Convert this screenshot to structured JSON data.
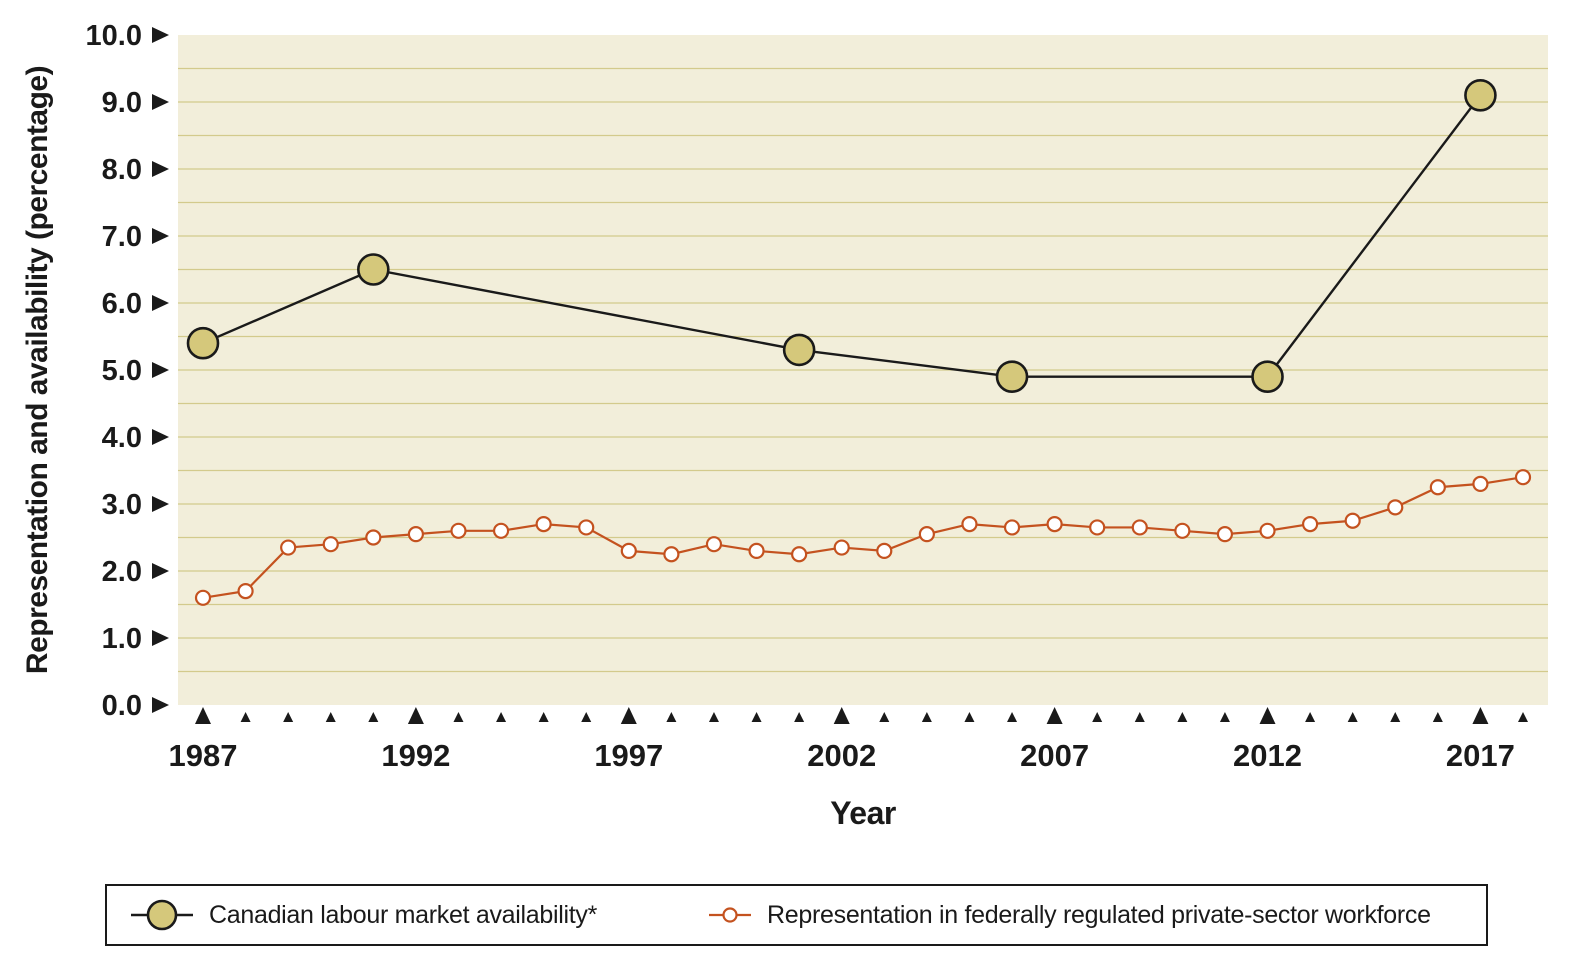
{
  "chart_data": {
    "type": "line",
    "title": "",
    "xlabel": "Year",
    "ylabel": "Representation and availability (percentage)",
    "x_range": [
      1987,
      2018
    ],
    "x_ticks_major": [
      1987,
      1992,
      1997,
      2002,
      2007,
      2012,
      2017
    ],
    "ylim": [
      0,
      10
    ],
    "y_tick_labels": [
      "0.0",
      "1.0",
      "2.0",
      "3.0",
      "4.0",
      "5.0",
      "6.0",
      "7.0",
      "8.0",
      "9.0",
      "10.0"
    ],
    "gridline_step": 0.5,
    "grid": true,
    "legend_position": "bottom",
    "colors": {
      "plot_bg": "#f2eeda",
      "gridline": "#d3ca8c",
      "labour_line": "#1a1a1a",
      "labour_marker_fill": "#d5c87b",
      "representation_line": "#c4521f",
      "representation_marker_fill": "#ffffff"
    },
    "series": [
      {
        "name": "Canadian labour market availability*",
        "color": "#1a1a1a",
        "marker_fill": "#d5c87b",
        "marker_size": "large",
        "points": [
          [
            1987,
            5.4
          ],
          [
            1991,
            6.5
          ],
          [
            2001,
            5.3
          ],
          [
            2006,
            4.9
          ],
          [
            2012,
            4.9
          ],
          [
            2017,
            9.1
          ]
        ]
      },
      {
        "name": "Representation in federally regulated private-sector workforce",
        "color": "#c4521f",
        "marker_fill": "#ffffff",
        "marker_size": "small",
        "points": [
          [
            1987,
            1.6
          ],
          [
            1988,
            1.7
          ],
          [
            1989,
            2.35
          ],
          [
            1990,
            2.4
          ],
          [
            1991,
            2.5
          ],
          [
            1992,
            2.55
          ],
          [
            1993,
            2.6
          ],
          [
            1994,
            2.6
          ],
          [
            1995,
            2.7
          ],
          [
            1996,
            2.65
          ],
          [
            1997,
            2.3
          ],
          [
            1998,
            2.25
          ],
          [
            1999,
            2.4
          ],
          [
            2000,
            2.3
          ],
          [
            2001,
            2.25
          ],
          [
            2002,
            2.35
          ],
          [
            2003,
            2.3
          ],
          [
            2004,
            2.55
          ],
          [
            2005,
            2.7
          ],
          [
            2006,
            2.65
          ],
          [
            2007,
            2.7
          ],
          [
            2008,
            2.65
          ],
          [
            2009,
            2.65
          ],
          [
            2010,
            2.6
          ],
          [
            2011,
            2.55
          ],
          [
            2012,
            2.6
          ],
          [
            2013,
            2.7
          ],
          [
            2014,
            2.75
          ],
          [
            2015,
            2.95
          ],
          [
            2016,
            3.25
          ],
          [
            2017,
            3.3
          ],
          [
            2018,
            3.4
          ]
        ]
      }
    ]
  },
  "legend": {
    "items": [
      {
        "label": "Canadian labour market availability*"
      },
      {
        "label": "Representation in federally regulated private-sector workforce"
      }
    ]
  }
}
